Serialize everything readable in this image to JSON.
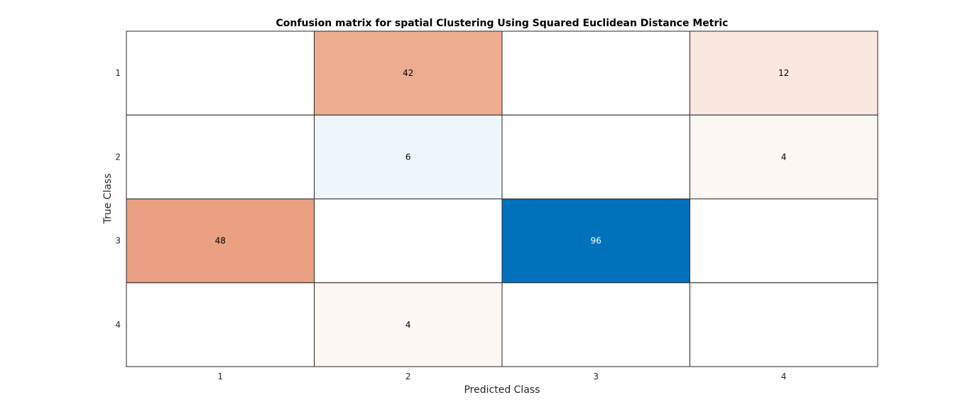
{
  "chart_data": {
    "type": "heatmap",
    "title": "Confusion matrix for spatial Clustering Using Squared Euclidean Distance Metric",
    "xlabel": "Predicted Class",
    "ylabel": "True Class",
    "x_categories": [
      "1",
      "2",
      "3",
      "4"
    ],
    "y_categories": [
      "1",
      "2",
      "3",
      "4"
    ],
    "matrix": [
      [
        0,
        42,
        0,
        12
      ],
      [
        0,
        6,
        0,
        4
      ],
      [
        48,
        0,
        96,
        0
      ],
      [
        0,
        4,
        0,
        0
      ]
    ],
    "diagonal_color": "#0072bd",
    "off_diagonal_color": "#d95319",
    "grid": true
  }
}
